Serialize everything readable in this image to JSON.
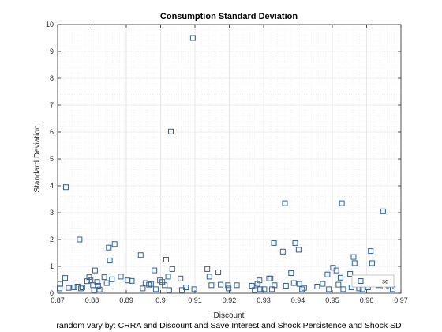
{
  "chart_data": {
    "type": "scatter",
    "title": "Consumption Standard Deviation",
    "xlabel": "Discount",
    "ylabel": "Standard Deviation",
    "xlim": [
      0.87,
      0.97
    ],
    "ylim": [
      0,
      10
    ],
    "x_ticks": [
      "0.87",
      "0.88",
      "0.89",
      "0.9",
      "0.91",
      "0.92",
      "0.93",
      "0.94",
      "0.95",
      "0.96",
      "0.97"
    ],
    "y_ticks": [
      "0",
      "1",
      "2",
      "3",
      "4",
      "5",
      "6",
      "7",
      "8",
      "9",
      "10"
    ],
    "grid": true,
    "minor_grid": true,
    "marker": "square",
    "color": "#2b5f9e",
    "legend": {
      "placement": "bottom-right",
      "entries": [
        "sd"
      ]
    },
    "caption": "random vary by: CRRA and Discount and Save Interest and Shock Persistence and Shock SD",
    "points": [
      {
        "x": 0.8706,
        "y": 0.18
      },
      {
        "x": 0.8708,
        "y": 0.35
      },
      {
        "x": 0.8722,
        "y": 0.57
      },
      {
        "x": 0.8724,
        "y": 3.95
      },
      {
        "x": 0.8732,
        "y": 0.2
      },
      {
        "x": 0.8748,
        "y": 0.22
      },
      {
        "x": 0.8758,
        "y": 0.25
      },
      {
        "x": 0.8764,
        "y": 2.0
      },
      {
        "x": 0.8768,
        "y": 0.18
      },
      {
        "x": 0.8772,
        "y": 0.22
      },
      {
        "x": 0.8786,
        "y": 0.45
      },
      {
        "x": 0.8792,
        "y": 0.6
      },
      {
        "x": 0.8796,
        "y": 0.48
      },
      {
        "x": 0.8803,
        "y": 0.3
      },
      {
        "x": 0.8806,
        "y": 0.12
      },
      {
        "x": 0.8809,
        "y": 0.85
      },
      {
        "x": 0.8815,
        "y": 0.42
      },
      {
        "x": 0.8818,
        "y": 0.28
      },
      {
        "x": 0.8822,
        "y": 0.14
      },
      {
        "x": 0.8836,
        "y": 0.6
      },
      {
        "x": 0.8843,
        "y": 0.38
      },
      {
        "x": 0.8849,
        "y": 1.7
      },
      {
        "x": 0.8852,
        "y": 1.22
      },
      {
        "x": 0.8858,
        "y": 0.52
      },
      {
        "x": 0.8866,
        "y": 1.83
      },
      {
        "x": 0.8884,
        "y": 0.62
      },
      {
        "x": 0.8904,
        "y": 0.48
      },
      {
        "x": 0.8916,
        "y": 0.46
      },
      {
        "x": 0.8942,
        "y": 1.42
      },
      {
        "x": 0.8948,
        "y": 0.18
      },
      {
        "x": 0.8956,
        "y": 0.38
      },
      {
        "x": 0.8966,
        "y": 0.32
      },
      {
        "x": 0.8972,
        "y": 0.35
      },
      {
        "x": 0.8982,
        "y": 0.85
      },
      {
        "x": 0.8986,
        "y": 0.15
      },
      {
        "x": 0.8998,
        "y": 0.48
      },
      {
        "x": 0.9005,
        "y": 0.42
      },
      {
        "x": 0.9012,
        "y": 0.3
      },
      {
        "x": 0.9016,
        "y": 1.25
      },
      {
        "x": 0.9022,
        "y": 0.62
      },
      {
        "x": 0.9025,
        "y": 0.12
      },
      {
        "x": 0.903,
        "y": 6.02
      },
      {
        "x": 0.9034,
        "y": 0.9
      },
      {
        "x": 0.9058,
        "y": 0.55
      },
      {
        "x": 0.9062,
        "y": 0.12
      },
      {
        "x": 0.9074,
        "y": 0.22
      },
      {
        "x": 0.9094,
        "y": 9.5
      },
      {
        "x": 0.9098,
        "y": 0.15
      },
      {
        "x": 0.9136,
        "y": 0.9
      },
      {
        "x": 0.9142,
        "y": 0.62
      },
      {
        "x": 0.9148,
        "y": 0.3
      },
      {
        "x": 0.9168,
        "y": 0.78
      },
      {
        "x": 0.9175,
        "y": 0.32
      },
      {
        "x": 0.9196,
        "y": 0.3
      },
      {
        "x": 0.9198,
        "y": 0.18
      },
      {
        "x": 0.9222,
        "y": 0.3
      },
      {
        "x": 0.9266,
        "y": 0.28
      },
      {
        "x": 0.9274,
        "y": 0.12
      },
      {
        "x": 0.9282,
        "y": 0.35
      },
      {
        "x": 0.9288,
        "y": 0.48
      },
      {
        "x": 0.929,
        "y": 0.15
      },
      {
        "x": 0.9302,
        "y": 0.15
      },
      {
        "x": 0.9316,
        "y": 0.55
      },
      {
        "x": 0.932,
        "y": 0.55
      },
      {
        "x": 0.9324,
        "y": 0.15
      },
      {
        "x": 0.9332,
        "y": 0.3
      },
      {
        "x": 0.933,
        "y": 1.87
      },
      {
        "x": 0.9356,
        "y": 1.55
      },
      {
        "x": 0.9362,
        "y": 3.35
      },
      {
        "x": 0.9365,
        "y": 0.28
      },
      {
        "x": 0.938,
        "y": 0.75
      },
      {
        "x": 0.9388,
        "y": 0.38
      },
      {
        "x": 0.9392,
        "y": 1.87
      },
      {
        "x": 0.9402,
        "y": 1.62
      },
      {
        "x": 0.9404,
        "y": 0.35
      },
      {
        "x": 0.9412,
        "y": 0.15
      },
      {
        "x": 0.9418,
        "y": 0.2
      },
      {
        "x": 0.9456,
        "y": 0.25
      },
      {
        "x": 0.9472,
        "y": 0.35
      },
      {
        "x": 0.9486,
        "y": 0.7
      },
      {
        "x": 0.949,
        "y": 0.15
      },
      {
        "x": 0.9502,
        "y": 0.95
      },
      {
        "x": 0.9512,
        "y": 0.85
      },
      {
        "x": 0.9518,
        "y": 0.32
      },
      {
        "x": 0.9524,
        "y": 0.58
      },
      {
        "x": 0.9528,
        "y": 3.35
      },
      {
        "x": 0.9532,
        "y": 0.15
      },
      {
        "x": 0.9552,
        "y": 0.72
      },
      {
        "x": 0.9556,
        "y": 0.22
      },
      {
        "x": 0.9562,
        "y": 1.35
      },
      {
        "x": 0.9565,
        "y": 1.12
      },
      {
        "x": 0.9572,
        "y": 0.55
      },
      {
        "x": 0.9574,
        "y": 0.45
      },
      {
        "x": 0.9578,
        "y": 0.18
      },
      {
        "x": 0.9588,
        "y": 0.15
      },
      {
        "x": 0.9604,
        "y": 0.22
      },
      {
        "x": 0.9612,
        "y": 1.57
      },
      {
        "x": 0.9616,
        "y": 1.12
      },
      {
        "x": 0.961,
        "y": 0.45
      },
      {
        "x": 0.9622,
        "y": 0.38
      },
      {
        "x": 0.9635,
        "y": 0.3
      },
      {
        "x": 0.9648,
        "y": 3.05
      },
      {
        "x": 0.9652,
        "y": 0.25
      },
      {
        "x": 0.9664,
        "y": 0.32
      },
      {
        "x": 0.967,
        "y": 0.25
      },
      {
        "x": 0.9676,
        "y": 0.15
      }
    ]
  }
}
